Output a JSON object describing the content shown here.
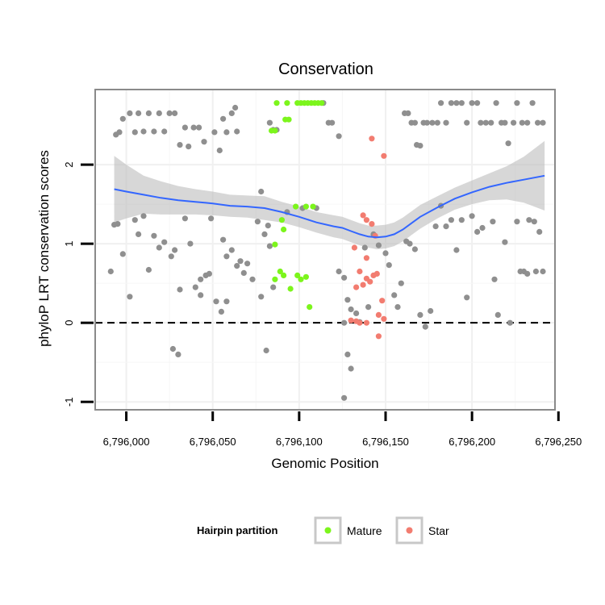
{
  "chart_data": {
    "type": "scatter",
    "title": "Conservation",
    "xlabel": "Genomic Position",
    "ylabel": "phyloP LRT conservation scores",
    "xlim": [
      6795982,
      6796248
    ],
    "ylim": [
      -1.1,
      2.95
    ],
    "x_ticks": [
      {
        "value": 6796000,
        "label": "6,796,000"
      },
      {
        "value": 6796050,
        "label": "6,796,050"
      },
      {
        "value": 6796100,
        "label": "6,796,100"
      },
      {
        "value": 6796150,
        "label": "6,796,150"
      },
      {
        "value": 6796200,
        "label": "6,796,200"
      },
      {
        "value": 6796250,
        "label": "6,796,250"
      }
    ],
    "y_ticks": [
      {
        "value": -1,
        "label": "-1"
      },
      {
        "value": 0,
        "label": "0"
      },
      {
        "value": 1,
        "label": "1"
      },
      {
        "value": 2,
        "label": "2"
      }
    ],
    "reference_line": {
      "y": 0,
      "style": "dashed"
    },
    "legend": {
      "title": "Hairpin partition",
      "position": "bottom",
      "entries": [
        {
          "label": "Mature",
          "color": "#7cf51c"
        },
        {
          "label": "Star",
          "color": "#f27c70"
        }
      ]
    },
    "colors": {
      "other": "#8f8f8f",
      "Mature": "#7cf51c",
      "Star": "#f27c70",
      "smooth_line": "#3366ff",
      "confidence_band": "#bdbdbd"
    },
    "smooth": {
      "x": [
        6795993,
        6796000,
        6796010,
        6796020,
        6796030,
        6796040,
        6796050,
        6796060,
        6796070,
        6796080,
        6796090,
        6796100,
        6796110,
        6796120,
        6796125,
        6796130,
        6796135,
        6796140,
        6796145,
        6796150,
        6796155,
        6796160,
        6796165,
        6796170,
        6796180,
        6796190,
        6796200,
        6796210,
        6796220,
        6796230,
        6796242
      ],
      "y": [
        1.69,
        1.66,
        1.62,
        1.58,
        1.55,
        1.53,
        1.51,
        1.48,
        1.47,
        1.45,
        1.4,
        1.34,
        1.27,
        1.22,
        1.2,
        1.16,
        1.12,
        1.09,
        1.08,
        1.09,
        1.12,
        1.18,
        1.26,
        1.34,
        1.46,
        1.57,
        1.65,
        1.72,
        1.77,
        1.81,
        1.86
      ],
      "lower": [
        1.27,
        1.32,
        1.38,
        1.37,
        1.37,
        1.37,
        1.36,
        1.34,
        1.33,
        1.3,
        1.27,
        1.21,
        1.14,
        1.08,
        1.06,
        1.02,
        0.98,
        0.95,
        0.93,
        0.94,
        0.97,
        1.03,
        1.11,
        1.19,
        1.32,
        1.43,
        1.5,
        1.55,
        1.56,
        1.52,
        1.42
      ],
      "upper": [
        2.11,
        2.0,
        1.86,
        1.79,
        1.73,
        1.69,
        1.66,
        1.62,
        1.61,
        1.6,
        1.53,
        1.47,
        1.4,
        1.36,
        1.34,
        1.3,
        1.26,
        1.23,
        1.23,
        1.24,
        1.27,
        1.33,
        1.41,
        1.49,
        1.6,
        1.71,
        1.8,
        1.89,
        1.98,
        2.1,
        2.3
      ]
    },
    "series": [
      {
        "name": "Other",
        "points": [
          [
            6795994,
            2.38
          ],
          [
            6795996,
            2.41
          ],
          [
            6795998,
            2.58
          ],
          [
            6796002,
            2.65
          ],
          [
            6796005,
            2.41
          ],
          [
            6796007,
            2.65
          ],
          [
            6796010,
            2.42
          ],
          [
            6796013,
            2.65
          ],
          [
            6796016,
            2.42
          ],
          [
            6796019,
            2.65
          ],
          [
            6796022,
            2.42
          ],
          [
            6796025,
            2.65
          ],
          [
            6796028,
            2.65
          ],
          [
            6796031,
            2.25
          ],
          [
            6796034,
            2.47
          ],
          [
            6796036,
            2.23
          ],
          [
            6796039,
            2.47
          ],
          [
            6796042,
            2.47
          ],
          [
            6796045,
            2.29
          ],
          [
            6796051,
            2.41
          ],
          [
            6796054,
            2.18
          ],
          [
            6796056,
            2.58
          ],
          [
            6796058,
            2.41
          ],
          [
            6796061,
            2.65
          ],
          [
            6796063,
            2.72
          ],
          [
            6796064,
            2.42
          ],
          [
            6796083,
            2.53
          ],
          [
            6796085,
            2.44
          ],
          [
            6796087,
            2.44
          ],
          [
            6796114,
            2.78
          ],
          [
            6796117,
            2.53
          ],
          [
            6796119,
            2.53
          ],
          [
            6796123,
            2.36
          ],
          [
            6796161,
            2.65
          ],
          [
            6796163,
            2.65
          ],
          [
            6796165,
            2.53
          ],
          [
            6796167,
            2.53
          ],
          [
            6796168,
            2.25
          ],
          [
            6796170,
            2.24
          ],
          [
            6796172,
            2.53
          ],
          [
            6796174,
            2.53
          ],
          [
            6796177,
            2.53
          ],
          [
            6796180,
            2.53
          ],
          [
            6796182,
            2.78
          ],
          [
            6796185,
            2.53
          ],
          [
            6796188,
            2.78
          ],
          [
            6796191,
            2.78
          ],
          [
            6796194,
            2.78
          ],
          [
            6796197,
            2.53
          ],
          [
            6796200,
            2.78
          ],
          [
            6796203,
            2.78
          ],
          [
            6796205,
            2.53
          ],
          [
            6796208,
            2.53
          ],
          [
            6796211,
            2.53
          ],
          [
            6796214,
            2.78
          ],
          [
            6796217,
            2.53
          ],
          [
            6796219,
            2.53
          ],
          [
            6796221,
            2.27
          ],
          [
            6796224,
            2.53
          ],
          [
            6796226,
            2.78
          ],
          [
            6796229,
            2.53
          ],
          [
            6796232,
            2.53
          ],
          [
            6796235,
            2.78
          ],
          [
            6796238,
            2.53
          ],
          [
            6796241,
            2.53
          ],
          [
            6795993,
            1.24
          ],
          [
            6795995,
            1.25
          ],
          [
            6795998,
            0.87
          ],
          [
            6796002,
            0.33
          ],
          [
            6796005,
            1.3
          ],
          [
            6796007,
            1.12
          ],
          [
            6796010,
            1.35
          ],
          [
            6796013,
            0.67
          ],
          [
            6796016,
            1.1
          ],
          [
            6796019,
            0.95
          ],
          [
            6796022,
            1.02
          ],
          [
            6796026,
            0.84
          ],
          [
            6796028,
            0.92
          ],
          [
            6796031,
            0.42
          ],
          [
            6796034,
            1.32
          ],
          [
            6796037,
            1.0
          ],
          [
            6796040,
            0.45
          ],
          [
            6796043,
            0.55
          ],
          [
            6796046,
            0.6
          ],
          [
            6796049,
            1.32
          ],
          [
            6796052,
            0.27
          ],
          [
            6796055,
            0.14
          ],
          [
            6796058,
            0.27
          ],
          [
            6796061,
            0.92
          ],
          [
            6796064,
            0.72
          ],
          [
            6796066,
            0.78
          ],
          [
            6796068,
            0.63
          ],
          [
            6796070,
            0.75
          ],
          [
            6796073,
            0.55
          ],
          [
            6796076,
            1.28
          ],
          [
            6796078,
            1.66
          ],
          [
            6796080,
            1.12
          ],
          [
            6796082,
            1.23
          ],
          [
            6796083,
            0.97
          ],
          [
            6796085,
            0.45
          ],
          [
            6796093,
            1.4
          ],
          [
            6796102,
            1.45
          ],
          [
            6796110,
            1.45
          ],
          [
            6796123,
            0.65
          ],
          [
            6796126,
            0.57
          ],
          [
            6796128,
            0.29
          ],
          [
            6796130,
            0.17
          ],
          [
            6796133,
            0.12
          ],
          [
            6796135,
            0.01
          ],
          [
            6796138,
            0.95
          ],
          [
            6796140,
            0.2
          ],
          [
            6796143,
            1.12
          ],
          [
            6796146,
            0.98
          ],
          [
            6796150,
            0.88
          ],
          [
            6796152,
            0.73
          ],
          [
            6796155,
            0.35
          ],
          [
            6796157,
            0.2
          ],
          [
            6796159,
            0.5
          ],
          [
            6796162,
            1.03
          ],
          [
            6796164,
            1.0
          ],
          [
            6796167,
            0.93
          ],
          [
            6796170,
            0.1
          ],
          [
            6796173,
            -0.05
          ],
          [
            6796176,
            0.15
          ],
          [
            6796179,
            1.22
          ],
          [
            6796182,
            1.48
          ],
          [
            6796185,
            1.22
          ],
          [
            6796188,
            1.3
          ],
          [
            6796191,
            0.92
          ],
          [
            6796194,
            1.3
          ],
          [
            6796197,
            0.32
          ],
          [
            6796200,
            1.35
          ],
          [
            6796203,
            1.15
          ],
          [
            6796206,
            1.2
          ],
          [
            6796212,
            1.28
          ],
          [
            6796213,
            0.55
          ],
          [
            6796215,
            0.1
          ],
          [
            6796219,
            1.02
          ],
          [
            6796222,
            0.0
          ],
          [
            6796226,
            1.28
          ],
          [
            6796228,
            0.65
          ],
          [
            6796230,
            0.65
          ],
          [
            6796233,
            1.3
          ],
          [
            6796236,
            1.28
          ],
          [
            6796239,
            1.15
          ],
          [
            6796241,
            0.65
          ],
          [
            6795991,
            0.65
          ],
          [
            6796043,
            0.35
          ],
          [
            6796078,
            0.33
          ],
          [
            6796081,
            -0.35
          ],
          [
            6796126,
            0.0
          ],
          [
            6796128,
            -0.4
          ],
          [
            6796130,
            -0.58
          ],
          [
            6796126,
            -0.95
          ],
          [
            6796027,
            -0.33
          ],
          [
            6796030,
            -0.4
          ],
          [
            6796048,
            0.62
          ],
          [
            6796056,
            1.05
          ],
          [
            6796058,
            0.84
          ],
          [
            6796232,
            0.62
          ],
          [
            6796237,
            0.65
          ]
        ]
      },
      {
        "name": "Mature",
        "points": [
          [
            6796087,
            2.78
          ],
          [
            6796093,
            2.78
          ],
          [
            6796099,
            2.78
          ],
          [
            6796101,
            2.78
          ],
          [
            6796103,
            2.78
          ],
          [
            6796105,
            2.78
          ],
          [
            6796107,
            2.78
          ],
          [
            6796109,
            2.78
          ],
          [
            6796111,
            2.78
          ],
          [
            6796113,
            2.78
          ],
          [
            6796092,
            2.57
          ],
          [
            6796094,
            2.57
          ],
          [
            6796084,
            2.43
          ],
          [
            6796086,
            2.43
          ],
          [
            6796098,
            1.47
          ],
          [
            6796104,
            1.47
          ],
          [
            6796108,
            1.47
          ],
          [
            6796090,
            1.3
          ],
          [
            6796091,
            1.18
          ],
          [
            6796086,
            0.99
          ],
          [
            6796086,
            0.55
          ],
          [
            6796089,
            0.65
          ],
          [
            6796091,
            0.6
          ],
          [
            6796095,
            0.43
          ],
          [
            6796099,
            0.6
          ],
          [
            6796101,
            0.55
          ],
          [
            6796104,
            0.58
          ],
          [
            6796106,
            0.2
          ]
        ]
      },
      {
        "name": "Star",
        "points": [
          [
            6796142,
            2.33
          ],
          [
            6796149,
            2.11
          ],
          [
            6796137,
            1.36
          ],
          [
            6796139,
            1.3
          ],
          [
            6796142,
            1.25
          ],
          [
            6796144,
            1.1
          ],
          [
            6796132,
            0.95
          ],
          [
            6796139,
            0.82
          ],
          [
            6796135,
            0.65
          ],
          [
            6796145,
            0.62
          ],
          [
            6796143,
            0.6
          ],
          [
            6796133,
            0.45
          ],
          [
            6796137,
            0.48
          ],
          [
            6796139,
            0.56
          ],
          [
            6796141,
            0.52
          ],
          [
            6796148,
            0.28
          ],
          [
            6796146,
            0.1
          ],
          [
            6796149,
            0.05
          ],
          [
            6796133,
            0.02
          ],
          [
            6796135,
            0.0
          ],
          [
            6796139,
            0.0
          ],
          [
            6796146,
            -0.17
          ],
          [
            6796130,
            0.03
          ]
        ]
      }
    ]
  }
}
